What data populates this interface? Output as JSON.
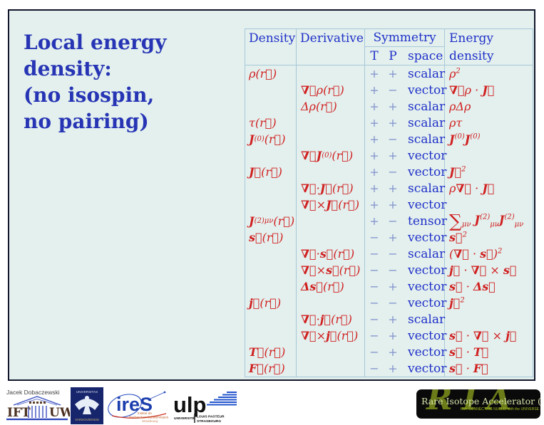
{
  "colors": {
    "slide_bg": "#e3f0ee",
    "frame_border": "#13162b",
    "title_blue": "#2735b5",
    "header_blue": "#2030c8",
    "sign_blue": "#8191cc",
    "math_red": "#d02020",
    "table_rule": "#a8c8d8",
    "ria_green": "#76891a"
  },
  "slide": {
    "title_lines": [
      "Local energy",
      "density:",
      "(no isospin,",
      "no pairing)"
    ],
    "table": {
      "header": {
        "density": "Density",
        "derivative": "Derivative",
        "symmetry": "Symmetry",
        "t": "T",
        "p": "P",
        "space": "space",
        "energy_line1": "Energy",
        "energy_line2": "density"
      },
      "rows": [
        {
          "d": "ρ(r⃗)",
          "der": "",
          "t": "+",
          "p": "+",
          "sp": "scalar",
          "e": "ρ<sup>2</sup>"
        },
        {
          "d": "",
          "der": "<b>∇⃗</b>ρ(r⃗)",
          "t": "+",
          "p": "−",
          "sp": "vector",
          "e": "<b>∇⃗</b>ρ · <b>J⃗</b>"
        },
        {
          "d": "",
          "der": "Δρ(r⃗)",
          "t": "+",
          "p": "+",
          "sp": "scalar",
          "e": "ρΔρ"
        },
        {
          "d": "τ(r⃗)",
          "der": "",
          "t": "+",
          "p": "+",
          "sp": "scalar",
          "e": "ρτ"
        },
        {
          "d": "<b>J</b><sup>(0)</sup>(r⃗)",
          "der": "",
          "t": "+",
          "p": "−",
          "sp": "scalar",
          "e": "<b>J</b><sup>(0)</sup><b>J</b><sup>(0)</sup>"
        },
        {
          "d": "",
          "der": "<b>∇⃗J</b><sup>(0)</sup>(r⃗)",
          "t": "+",
          "p": "+",
          "sp": "vector",
          "e": ""
        },
        {
          "d": "<b>J⃗</b>(r⃗)",
          "der": "",
          "t": "+",
          "p": "−",
          "sp": "vector",
          "e": "<b>J⃗</b><sup>2</sup>"
        },
        {
          "d": "",
          "der": "<b>∇⃗</b> · <b>J⃗</b>(r⃗)",
          "t": "+",
          "p": "+",
          "sp": "scalar",
          "e": "ρ<b>∇⃗</b> · <b>J⃗</b>"
        },
        {
          "d": "",
          "der": "<b>∇⃗</b> × <b>J⃗</b>(r⃗)",
          "t": "+",
          "p": "+",
          "sp": "vector",
          "e": ""
        },
        {
          "d": "<b>J</b><sup>(2)</sup><sub>μν</sub>(r⃗)",
          "der": "",
          "t": "+",
          "p": "−",
          "sp": "tensor",
          "e": "<span class='sum'>∑</span><sub>μν</sub> <b>J</b><sup>(2)</sup><sub>μν</sub><b>J</b><sup>(2)</sup><sub>μν</sub>"
        },
        {
          "d": "<b>s⃗</b>(r⃗)",
          "der": "",
          "t": "−",
          "p": "+",
          "sp": "vector",
          "e": "<b>s⃗</b><sup>2</sup>"
        },
        {
          "d": "",
          "der": "<b>∇⃗</b> · <b>s⃗</b>(r⃗)",
          "t": "−",
          "p": "−",
          "sp": "scalar",
          "e": "(<b>∇⃗</b> · <b>s⃗</b>)<sup>2</sup>"
        },
        {
          "d": "",
          "der": "<b>∇⃗</b> × <b>s⃗</b>(r⃗)",
          "t": "−",
          "p": "−",
          "sp": "vector",
          "e": "<b>j⃗</b> · <b>∇⃗</b> × <b>s⃗</b>"
        },
        {
          "d": "",
          "der": "<b>Δs⃗</b>(r⃗)",
          "t": "−",
          "p": "+",
          "sp": "vector",
          "e": "<b>s⃗</b> · <b>Δs⃗</b>"
        },
        {
          "d": "<b>j⃗</b>(r⃗)",
          "der": "",
          "t": "−",
          "p": "−",
          "sp": "vector",
          "e": "<b>j⃗</b><sup>2</sup>"
        },
        {
          "d": "",
          "der": "<b>∇⃗</b> · <b>j⃗</b>(r⃗)",
          "t": "−",
          "p": "+",
          "sp": "scalar",
          "e": ""
        },
        {
          "d": "",
          "der": "<b>∇⃗</b> × <b>j⃗</b>(r⃗)",
          "t": "−",
          "p": "+",
          "sp": "vector",
          "e": "<b>s⃗</b> · <b>∇⃗</b> × <b>j⃗</b>"
        },
        {
          "d": "<b>T⃗</b>(r⃗)",
          "der": "",
          "t": "−",
          "p": "+",
          "sp": "vector",
          "e": "<b>s⃗</b> · <b>T⃗</b>"
        },
        {
          "d": "<b>F⃗</b>(r⃗)",
          "der": "",
          "t": "−",
          "p": "+",
          "sp": "vector",
          "e": "<b>s⃗</b> · <b>F⃗</b>"
        }
      ]
    }
  },
  "footer": {
    "author": "Jacek Dobaczewski",
    "iftuw": {
      "left": "IFT",
      "right": "UW"
    },
    "uw_seal": {
      "top": "UNIVERSITAS",
      "bottom": "VARSOVIENSIS"
    },
    "ires": {
      "name": "ireS",
      "sub1": "Institut de",
      "sub2": "Recherches Subatomiques",
      "sub3": "Strasbourg"
    },
    "ulp": {
      "name": "ulp",
      "line1": "UNIVERSITÉ",
      "line2": "LOUIS PASTEUR",
      "line3": "STRASBOURG"
    },
    "ria": {
      "big": "RIA",
      "title": "Rare Isotope Accelerator (RIA)",
      "subtitle": "RIA: CONNECTING NUCLEI with the UNIVERSE"
    }
  }
}
